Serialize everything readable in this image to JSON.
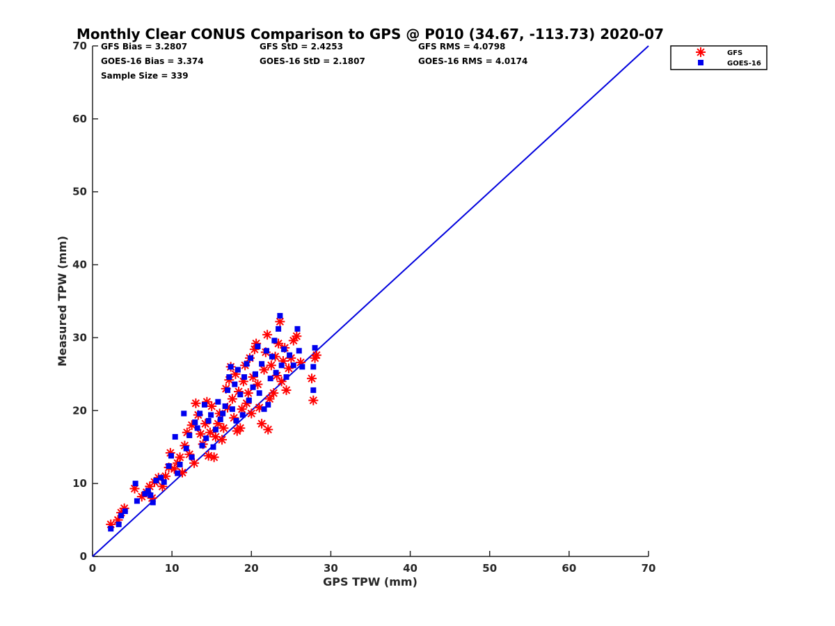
{
  "chart_data": {
    "type": "scatter",
    "title": "Monthly Clear CONUS Comparison to GPS @ P010 (34.67, -113.73) 2020-07",
    "xlabel": "GPS TPW (mm)",
    "ylabel": "Measured TPW (mm)",
    "xlim": [
      0,
      70
    ],
    "ylim": [
      0,
      70
    ],
    "xticks": [
      "0",
      "10",
      "20",
      "30",
      "40",
      "50",
      "60",
      "70"
    ],
    "yticks": [
      "0",
      "10",
      "20",
      "30",
      "40",
      "50",
      "60",
      "70"
    ],
    "grid": false,
    "legend_position": "outside-top-right",
    "stats": {
      "gfs_bias": "GFS Bias = 3.2807",
      "gfs_std": "GFS StD = 2.4253",
      "gfs_rms": "GFS RMS = 4.0798",
      "goes_bias": "GOES-16 Bias = 3.374",
      "goes_std": "GOES-16 StD = 2.1807",
      "goes_rms": "GOES-16 RMS = 4.0174",
      "sample_size": "Sample Size = 339"
    },
    "reference_line": {
      "x": [
        0,
        70
      ],
      "y": [
        0,
        70
      ],
      "color": "#0000dd"
    },
    "series": [
      {
        "name": "GFS",
        "marker": "asterisk",
        "color": "#ff0000",
        "points": [
          [
            2.3,
            4.4
          ],
          [
            3.2,
            5.0
          ],
          [
            3.6,
            6.0
          ],
          [
            4.0,
            6.6
          ],
          [
            5.3,
            9.3
          ],
          [
            6.2,
            8.2
          ],
          [
            6.8,
            8.8
          ],
          [
            7.2,
            9.6
          ],
          [
            7.5,
            8.0
          ],
          [
            7.8,
            10.2
          ],
          [
            8.3,
            10.8
          ],
          [
            8.8,
            9.6
          ],
          [
            9.2,
            11.0
          ],
          [
            9.6,
            12.2
          ],
          [
            9.8,
            14.2
          ],
          [
            10.3,
            12.0
          ],
          [
            10.7,
            12.8
          ],
          [
            11.0,
            13.6
          ],
          [
            11.3,
            11.5
          ],
          [
            11.6,
            15.2
          ],
          [
            11.9,
            17.0
          ],
          [
            12.2,
            14.0
          ],
          [
            12.5,
            18.0
          ],
          [
            12.8,
            12.8
          ],
          [
            13.0,
            21.0
          ],
          [
            13.3,
            19.4
          ],
          [
            13.6,
            16.8
          ],
          [
            13.9,
            15.4
          ],
          [
            14.2,
            18.2
          ],
          [
            14.4,
            21.2
          ],
          [
            14.6,
            13.8
          ],
          [
            14.8,
            17.0
          ],
          [
            15.0,
            20.6
          ],
          [
            15.3,
            13.6
          ],
          [
            15.5,
            16.4
          ],
          [
            15.8,
            18.2
          ],
          [
            16.0,
            19.6
          ],
          [
            16.3,
            16.0
          ],
          [
            16.5,
            17.6
          ],
          [
            16.8,
            23.0
          ],
          [
            17.0,
            20.4
          ],
          [
            17.2,
            24.2
          ],
          [
            17.4,
            26.0
          ],
          [
            17.6,
            21.6
          ],
          [
            17.8,
            19.0
          ],
          [
            18.0,
            25.0
          ],
          [
            18.2,
            17.2
          ],
          [
            18.4,
            22.6
          ],
          [
            18.6,
            17.6
          ],
          [
            18.8,
            20.2
          ],
          [
            19.0,
            24.0
          ],
          [
            19.2,
            26.2
          ],
          [
            19.4,
            21.0
          ],
          [
            19.6,
            22.4
          ],
          [
            19.8,
            27.2
          ],
          [
            20.0,
            19.6
          ],
          [
            20.2,
            24.6
          ],
          [
            20.4,
            28.4
          ],
          [
            20.6,
            29.2
          ],
          [
            20.8,
            23.6
          ],
          [
            21.0,
            20.4
          ],
          [
            21.3,
            18.2
          ],
          [
            21.6,
            25.6
          ],
          [
            21.8,
            28.0
          ],
          [
            22.0,
            30.4
          ],
          [
            22.1,
            17.4
          ],
          [
            22.3,
            21.6
          ],
          [
            22.5,
            26.2
          ],
          [
            22.8,
            22.4
          ],
          [
            23.0,
            27.4
          ],
          [
            23.2,
            24.8
          ],
          [
            23.4,
            29.2
          ],
          [
            23.6,
            32.2
          ],
          [
            23.8,
            24.0
          ],
          [
            24.0,
            26.8
          ],
          [
            24.2,
            28.6
          ],
          [
            24.4,
            22.8
          ],
          [
            24.7,
            25.8
          ],
          [
            25.0,
            27.2
          ],
          [
            25.3,
            29.6
          ],
          [
            25.7,
            30.2
          ],
          [
            26.2,
            26.6
          ],
          [
            27.6,
            24.4
          ],
          [
            27.8,
            21.4
          ],
          [
            28.0,
            27.2
          ],
          [
            28.2,
            27.6
          ]
        ]
      },
      {
        "name": "GOES-16",
        "marker": "square",
        "color": "#0000ee",
        "points": [
          [
            2.3,
            3.8
          ],
          [
            3.3,
            4.4
          ],
          [
            3.6,
            5.6
          ],
          [
            4.1,
            6.2
          ],
          [
            5.4,
            10.0
          ],
          [
            5.6,
            7.6
          ],
          [
            6.6,
            8.6
          ],
          [
            7.0,
            9.0
          ],
          [
            7.3,
            8.4
          ],
          [
            7.6,
            7.4
          ],
          [
            8.0,
            10.4
          ],
          [
            8.6,
            10.8
          ],
          [
            9.0,
            10.2
          ],
          [
            9.6,
            12.4
          ],
          [
            9.9,
            13.8
          ],
          [
            10.4,
            16.4
          ],
          [
            10.7,
            11.4
          ],
          [
            11.0,
            12.6
          ],
          [
            11.5,
            19.6
          ],
          [
            11.8,
            14.8
          ],
          [
            12.2,
            16.6
          ],
          [
            12.5,
            13.6
          ],
          [
            12.9,
            18.4
          ],
          [
            13.2,
            17.6
          ],
          [
            13.5,
            19.6
          ],
          [
            13.8,
            15.2
          ],
          [
            14.1,
            20.8
          ],
          [
            14.3,
            16.2
          ],
          [
            14.6,
            18.6
          ],
          [
            14.9,
            19.4
          ],
          [
            15.2,
            15.0
          ],
          [
            15.5,
            17.4
          ],
          [
            15.8,
            21.2
          ],
          [
            16.1,
            18.8
          ],
          [
            16.4,
            19.6
          ],
          [
            16.7,
            20.6
          ],
          [
            17.0,
            22.8
          ],
          [
            17.2,
            24.6
          ],
          [
            17.4,
            26.0
          ],
          [
            17.6,
            20.2
          ],
          [
            17.9,
            23.6
          ],
          [
            18.1,
            18.6
          ],
          [
            18.3,
            25.6
          ],
          [
            18.6,
            22.2
          ],
          [
            18.9,
            19.4
          ],
          [
            19.1,
            24.6
          ],
          [
            19.4,
            26.4
          ],
          [
            19.7,
            21.4
          ],
          [
            19.9,
            27.2
          ],
          [
            20.2,
            23.2
          ],
          [
            20.5,
            25.0
          ],
          [
            20.8,
            28.8
          ],
          [
            21.0,
            22.4
          ],
          [
            21.3,
            26.4
          ],
          [
            21.6,
            20.2
          ],
          [
            21.9,
            28.2
          ],
          [
            22.1,
            20.8
          ],
          [
            22.4,
            24.4
          ],
          [
            22.6,
            27.4
          ],
          [
            22.9,
            29.6
          ],
          [
            23.1,
            25.2
          ],
          [
            23.4,
            31.2
          ],
          [
            23.6,
            33.0
          ],
          [
            23.8,
            26.2
          ],
          [
            24.1,
            28.4
          ],
          [
            24.4,
            24.6
          ],
          [
            24.8,
            27.6
          ],
          [
            25.3,
            26.2
          ],
          [
            25.8,
            31.2
          ],
          [
            26.0,
            28.2
          ],
          [
            26.4,
            26.0
          ],
          [
            27.8,
            22.8
          ],
          [
            27.8,
            26.0
          ],
          [
            28.0,
            28.6
          ]
        ]
      }
    ]
  }
}
